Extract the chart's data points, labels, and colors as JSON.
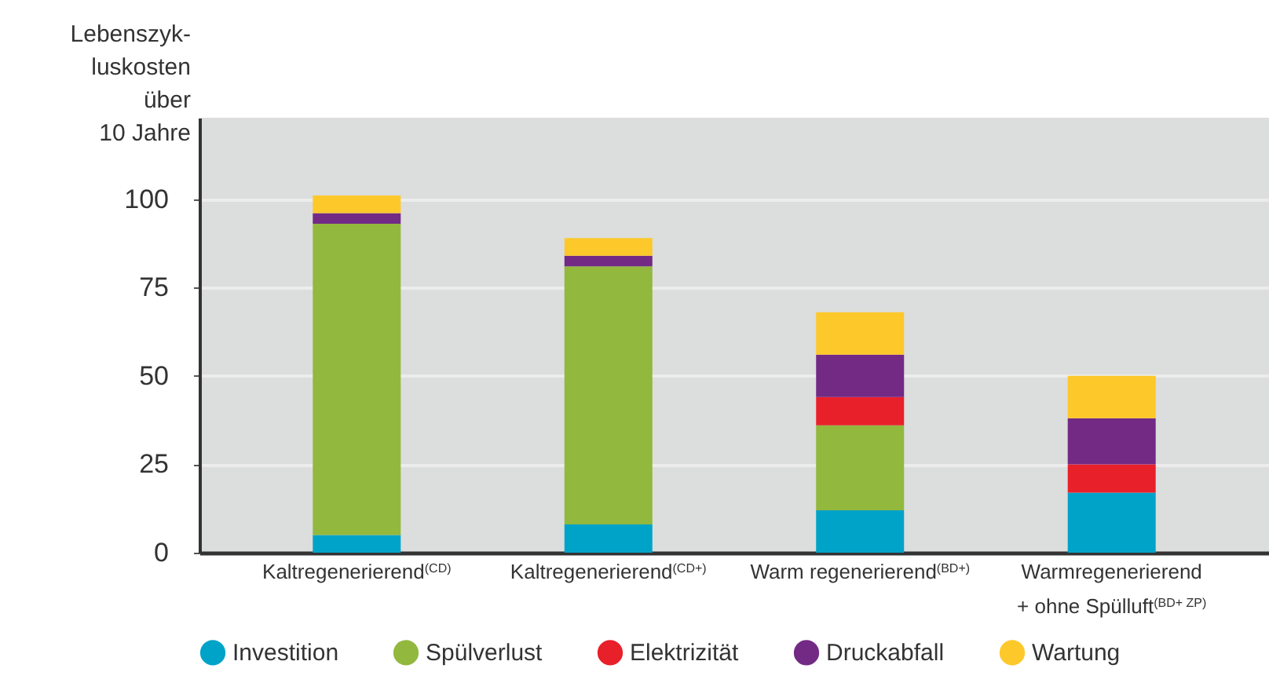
{
  "chart_data": {
    "type": "bar",
    "stacked": true,
    "ylabel": "Lebenszyk-\nluskosten\nüber\n10 Jahre",
    "categories": [
      "Kaltregenerierend$^{(CD)}$",
      "Kaltregenerierend$^{(CD+)}$",
      "Warm regenerierend$^{(BD+)}$",
      "Warmregenerierend\n+ ohne Spülluft$^{(BD+ ZP)}$"
    ],
    "series": [
      {
        "name": "Investition",
        "color": "#00a3c8",
        "values": [
          5,
          8,
          12,
          17
        ]
      },
      {
        "name": "Spülverlust",
        "color": "#92b83e",
        "values": [
          88,
          73,
          24,
          0
        ]
      },
      {
        "name": "Elektrizität",
        "color": "#e8202a",
        "values": [
          0,
          0,
          8,
          8
        ]
      },
      {
        "name": "Druckabfall",
        "color": "#722a85",
        "values": [
          3,
          3,
          12,
          13
        ]
      },
      {
        "name": "Wartung",
        "color": "#fdc82a",
        "values": [
          5,
          5,
          12,
          12
        ]
      }
    ],
    "ylim": [
      0,
      123
    ],
    "yticks": [
      0,
      25,
      50,
      75,
      100
    ],
    "grid": "y",
    "legend": "bottom"
  }
}
